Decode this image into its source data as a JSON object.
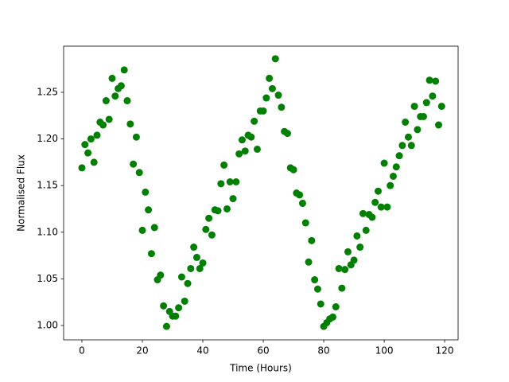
{
  "chart_data": {
    "type": "scatter",
    "xlabel": "Time (Hours)",
    "ylabel": "Normalised Flux",
    "color": "#008000",
    "x": [
      0,
      1,
      2,
      3,
      4,
      5,
      6,
      7,
      8,
      9,
      10,
      11,
      12,
      13,
      14,
      15,
      16,
      17,
      18,
      19,
      20,
      21,
      22,
      23,
      24,
      25,
      26,
      27,
      28,
      29,
      30,
      31,
      32,
      33,
      34,
      35,
      36,
      37,
      38,
      39,
      40,
      41,
      42,
      43,
      44,
      45,
      46,
      47,
      48,
      49,
      50,
      51,
      52,
      53,
      54,
      55,
      56,
      57,
      58,
      59,
      60,
      61,
      62,
      63,
      64,
      65,
      66,
      67,
      68,
      69,
      70,
      71,
      72,
      73,
      74,
      75,
      76,
      77,
      78,
      79,
      80,
      81,
      82,
      83,
      84,
      85,
      86,
      87,
      88,
      89,
      90,
      91,
      92,
      93,
      94,
      95,
      96,
      97,
      98,
      99,
      100,
      101,
      102,
      103,
      104,
      105,
      106,
      107,
      108,
      109,
      110,
      111,
      112,
      113,
      114,
      115,
      116,
      117,
      118,
      119
    ],
    "y": [
      1.169,
      1.194,
      1.185,
      1.2,
      1.175,
      1.204,
      1.218,
      1.215,
      1.241,
      1.221,
      1.265,
      1.246,
      1.254,
      1.257,
      1.274,
      1.241,
      1.216,
      1.173,
      1.202,
      1.164,
      1.102,
      1.143,
      1.124,
      1.077,
      1.105,
      1.049,
      1.054,
      1.021,
      0.999,
      1.015,
      1.01,
      1.01,
      1.019,
      1.052,
      1.026,
      1.045,
      1.061,
      1.084,
      1.073,
      1.061,
      1.067,
      1.103,
      1.115,
      1.097,
      1.124,
      1.123,
      1.152,
      1.172,
      1.125,
      1.154,
      1.136,
      1.154,
      1.184,
      1.199,
      1.187,
      1.204,
      1.202,
      1.219,
      1.189,
      1.23,
      1.23,
      1.244,
      1.265,
      1.254,
      1.286,
      1.247,
      1.234,
      1.208,
      1.206,
      1.169,
      1.167,
      1.142,
      1.14,
      1.131,
      1.11,
      1.068,
      1.091,
      1.049,
      1.039,
      1.023,
      0.999,
      1.003,
      1.007,
      1.009,
      1.02,
      1.061,
      1.04,
      1.06,
      1.079,
      1.065,
      1.07,
      1.096,
      1.084,
      1.12,
      1.102,
      1.119,
      1.116,
      1.132,
      1.144,
      1.127,
      1.174,
      1.127,
      1.15,
      1.16,
      1.17,
      1.182,
      1.193,
      1.218,
      1.202,
      1.193,
      1.235,
      1.21,
      1.224,
      1.224,
      1.239,
      1.263,
      1.246,
      1.262,
      1.215,
      1.235
    ],
    "xlim": [
      -6.05,
      124.45
    ],
    "ylim": [
      0.9846,
      1.2995
    ],
    "xticks": [
      0,
      20,
      40,
      60,
      80,
      100,
      120
    ],
    "yticks": [
      {
        "value": 1,
        "label": "1.00"
      },
      1.05,
      {
        "value": 1.1,
        "label": "1.10"
      },
      1.15,
      {
        "value": 1.2,
        "label": "1.20"
      },
      1.25
    ]
  }
}
